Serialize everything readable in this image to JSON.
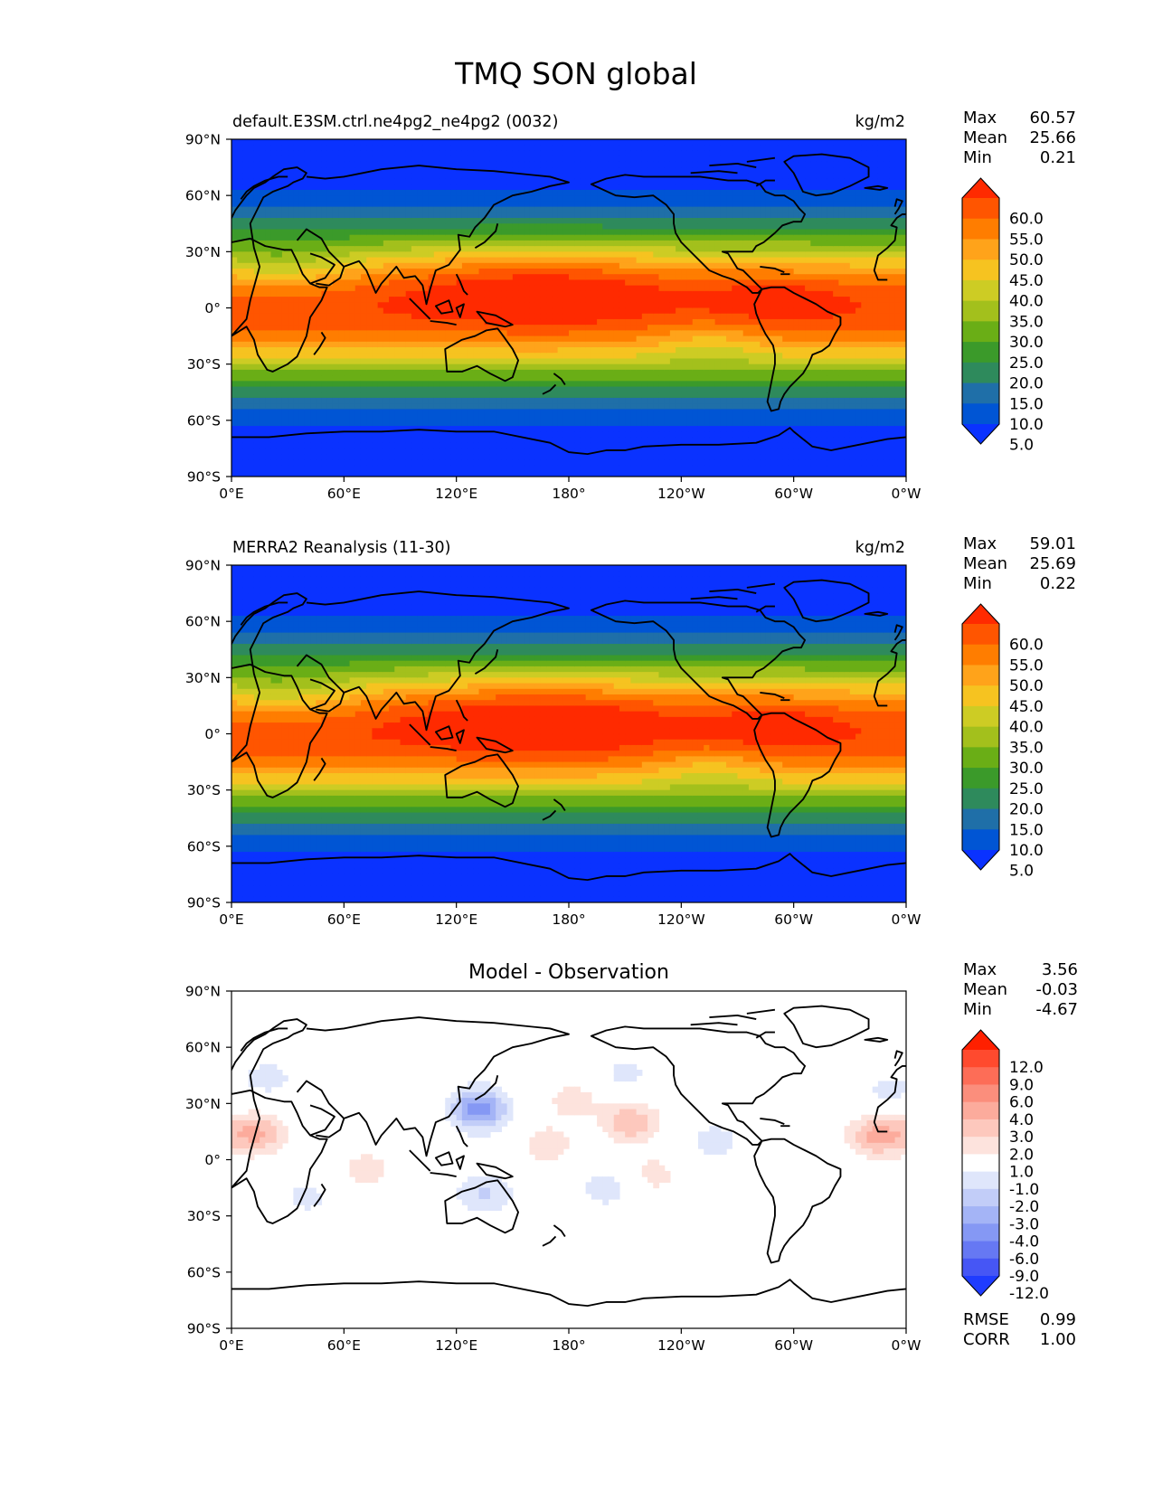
{
  "figure_title": "TMQ SON global",
  "chart_data": [
    {
      "type": "heatmap",
      "title": "default.E3SM.ctrl.ne4pg2_ne4pg2 (0032)",
      "units": "kg/m2",
      "stats": [
        {
          "label": "Max",
          "value": "60.57"
        },
        {
          "label": "Mean",
          "value": "25.66"
        },
        {
          "label": "Min",
          "value": "0.21"
        }
      ],
      "x_ticks": [
        "0°E",
        "60°E",
        "120°E",
        "180°",
        "120°W",
        "60°W",
        "0°W"
      ],
      "y_ticks": [
        "90°N",
        "60°N",
        "30°N",
        "0°",
        "30°S",
        "60°S",
        "90°S"
      ],
      "xlim": [
        0,
        360
      ],
      "ylim": [
        -90,
        90
      ],
      "colorbar": {
        "levels": [
          "60.0",
          "55.0",
          "50.0",
          "45.0",
          "40.0",
          "35.0",
          "30.0",
          "25.0",
          "20.0",
          "15.0",
          "10.0",
          "5.0"
        ],
        "colors": [
          "#ff2a00",
          "#ff5500",
          "#ff7d00",
          "#ffa31a",
          "#f6c320",
          "#cdcc24",
          "#a3c01c",
          "#6aae16",
          "#3b9a2a",
          "#2e8a5c",
          "#1f6fa8",
          "#0055d4",
          "#0a32ff"
        ]
      },
      "peak": {
        "lon": 165,
        "lat": 13,
        "max": 60.57
      }
    },
    {
      "type": "heatmap",
      "title": "MERRA2 Reanalysis (11-30)",
      "units": "kg/m2",
      "stats": [
        {
          "label": "Max",
          "value": "59.01"
        },
        {
          "label": "Mean",
          "value": "25.69"
        },
        {
          "label": "Min",
          "value": "0.22"
        }
      ],
      "x_ticks": [
        "0°E",
        "60°E",
        "120°E",
        "180°",
        "120°W",
        "60°W",
        "0°W"
      ],
      "y_ticks": [
        "90°N",
        "60°N",
        "30°N",
        "0°",
        "30°S",
        "60°S",
        "90°S"
      ],
      "xlim": [
        0,
        360
      ],
      "ylim": [
        -90,
        90
      ],
      "colorbar": {
        "levels": [
          "60.0",
          "55.0",
          "50.0",
          "45.0",
          "40.0",
          "35.0",
          "30.0",
          "25.0",
          "20.0",
          "15.0",
          "10.0",
          "5.0"
        ],
        "colors": [
          "#ff2a00",
          "#ff5500",
          "#ff7d00",
          "#ffa31a",
          "#f6c320",
          "#cdcc24",
          "#a3c01c",
          "#6aae16",
          "#3b9a2a",
          "#2e8a5c",
          "#1f6fa8",
          "#0055d4",
          "#0a32ff"
        ]
      },
      "peak": {
        "lon": 165,
        "lat": 10,
        "max": 59.01
      }
    },
    {
      "type": "heatmap",
      "title": "Model - Observation",
      "units": "",
      "stats": [
        {
          "label": "Max",
          "value": "3.56"
        },
        {
          "label": "Mean",
          "value": "-0.03"
        },
        {
          "label": "Min",
          "value": "-4.67"
        }
      ],
      "extra_stats": [
        {
          "label": "RMSE",
          "value": "0.99"
        },
        {
          "label": "CORR",
          "value": "1.00"
        }
      ],
      "x_ticks": [
        "0°E",
        "60°E",
        "120°E",
        "180°",
        "120°W",
        "60°W",
        "0°W"
      ],
      "y_ticks": [
        "90°N",
        "60°N",
        "30°N",
        "0°",
        "30°S",
        "60°S",
        "90°S"
      ],
      "xlim": [
        0,
        360
      ],
      "ylim": [
        -90,
        90
      ],
      "colorbar": {
        "levels": [
          "12.0",
          "9.0",
          "6.0",
          "4.0",
          "3.0",
          "2.0",
          "1.0",
          "-1.0",
          "-2.0",
          "-3.0",
          "-4.0",
          "-6.0",
          "-9.0",
          "-12.0"
        ],
        "colors": [
          "#ff2000",
          "#ff4a2e",
          "#fd6d57",
          "#fb8e7c",
          "#fcab9c",
          "#fdc8bd",
          "#fde3dd",
          "#ffffff",
          "#dfe6fb",
          "#c2cdf8",
          "#a4b4f6",
          "#8598f4",
          "#6678f3",
          "#4656f5",
          "#1f3cff"
        ]
      },
      "anomalies": [
        {
          "lon": 13,
          "lat": 14,
          "value": 3.2
        },
        {
          "lon": 345,
          "lat": 13,
          "value": 3.5
        },
        {
          "lon": 213,
          "lat": 20,
          "value": 2.8
        },
        {
          "lon": 168,
          "lat": 8,
          "value": 1.6
        },
        {
          "lon": 182,
          "lat": 32,
          "value": 1.5
        },
        {
          "lon": 72,
          "lat": -5,
          "value": 1.5
        },
        {
          "lon": 225,
          "lat": -8,
          "value": 1.4
        },
        {
          "lon": 132,
          "lat": 27,
          "value": -4.67
        },
        {
          "lon": 135,
          "lat": -18,
          "value": -2.2
        },
        {
          "lon": 200,
          "lat": -15,
          "value": -1.6
        },
        {
          "lon": 258,
          "lat": 10,
          "value": -1.5
        },
        {
          "lon": 210,
          "lat": 45,
          "value": -1.3
        },
        {
          "lon": 20,
          "lat": 44,
          "value": -1.4
        },
        {
          "lon": 40,
          "lat": -20,
          "value": -1.3
        },
        {
          "lon": 350,
          "lat": 36,
          "value": -1.3
        }
      ]
    }
  ]
}
